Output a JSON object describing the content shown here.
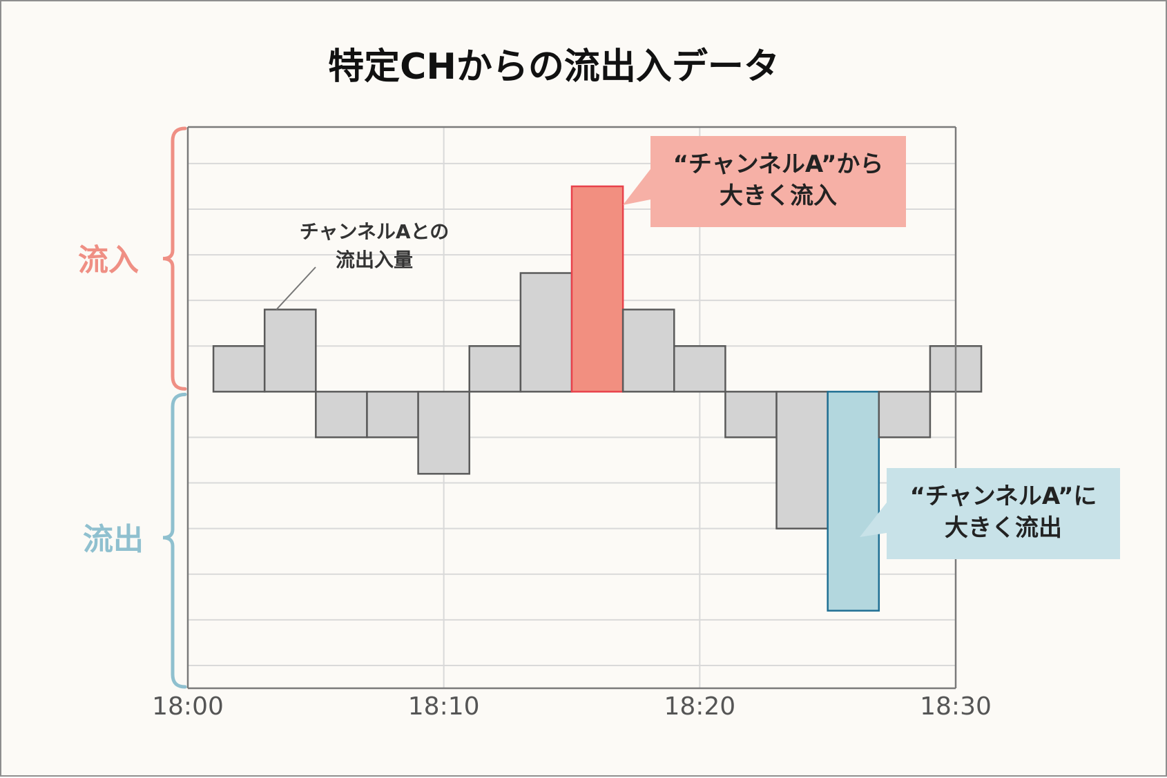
{
  "chart_data": {
    "type": "bar",
    "title": "特定CHからの流出入データ",
    "x_tick_labels": [
      "18:00",
      "18:10",
      "18:20",
      "18:30"
    ],
    "x_range": [
      0,
      30
    ],
    "bar_interval_minutes": 2,
    "values": [
      1,
      1.8,
      -1,
      -1,
      -1.8,
      1,
      2.6,
      4.5,
      1.8,
      1,
      -1,
      -3,
      -4.8,
      -1,
      1
    ],
    "highlight": {
      "inflow_index": 7,
      "outflow_index": 12
    },
    "ylim": [
      -6.5,
      5.8
    ],
    "grid": true,
    "y_axis_labels": {
      "positive": "流入",
      "negative": "流出"
    },
    "annotations": {
      "bar_note": [
        "チャンネルAとの",
        "流出入量"
      ],
      "inflow_callout": [
        "“チャンネルA”から",
        "大きく流入"
      ],
      "outflow_callout": [
        "“チャンネルA”に",
        "大きく流出"
      ]
    }
  },
  "colors": {
    "background": "#fcfaf6",
    "frame_border": "#8e8e8e",
    "grid": "#d9d9d9",
    "axis": "#7a7a7a",
    "bar_fill": "#d3d3d3",
    "bar_stroke": "#5a5a5a",
    "inflow_fill": "#f28f80",
    "inflow_stroke": "#e8414b",
    "outflow_fill": "#b3d7de",
    "outflow_stroke": "#1f6f93",
    "inflow_label": "#ef8f84",
    "outflow_label": "#8fc0cf",
    "inflow_callout_bg": "#f6b0a6",
    "outflow_callout_bg": "#c8e2e8",
    "text_dark": "#222222",
    "tick_text": "#555555"
  }
}
